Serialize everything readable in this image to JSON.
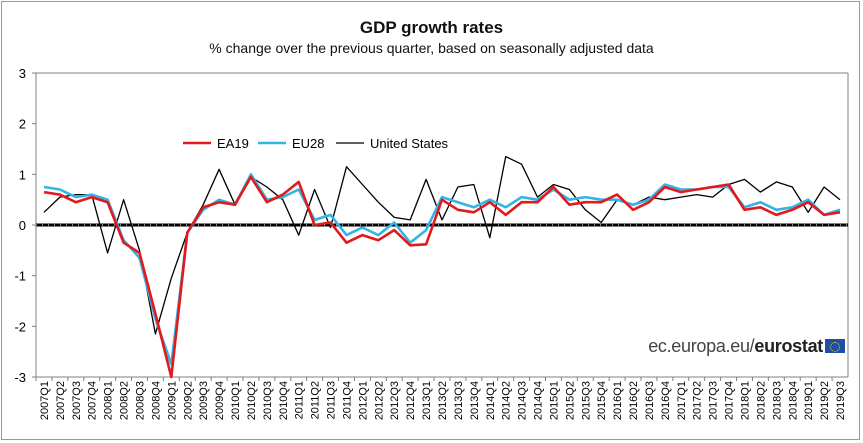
{
  "colors": {
    "ea19": "#e3191b",
    "eu28": "#33b4e5",
    "us": "#000000",
    "zero_line": "#000000",
    "axis": "#808080"
  },
  "logo": {
    "prefix": "ec.europa.eu/",
    "brand": "eurostat",
    "icon": "eu-flag-icon"
  },
  "chart_data": {
    "type": "line",
    "title": "GDP growth rates",
    "subtitle": "% change over the previous quarter, based on seasonally adjusted data",
    "xlabel": "",
    "ylabel": "",
    "ylim": [
      -3,
      3
    ],
    "yticks": [
      3,
      2,
      1,
      0,
      -1,
      -2,
      -3
    ],
    "grid": false,
    "legend_position": "upper-left",
    "categories": [
      "2007Q1",
      "2007Q2",
      "2007Q3",
      "2007Q4",
      "2008Q1",
      "2008Q2",
      "2008Q3",
      "2008Q4",
      "2009Q1",
      "2009Q2",
      "2009Q3",
      "2009Q4",
      "2010Q1",
      "2010Q2",
      "2010Q3",
      "2010Q4",
      "2011Q1",
      "2011Q2",
      "2011Q3",
      "2011Q4",
      "2012Q1",
      "2012Q2",
      "2012Q3",
      "2012Q4",
      "2013Q1",
      "2013Q2",
      "2013Q3",
      "2013Q4",
      "2014Q1",
      "2014Q2",
      "2014Q3",
      "2014Q4",
      "2015Q1",
      "2015Q2",
      "2015Q3",
      "2015Q4",
      "2016Q1",
      "2016Q2",
      "2016Q3",
      "2016Q4",
      "2017Q1",
      "2017Q2",
      "2017Q3",
      "2017Q4",
      "2018Q1",
      "2018Q2",
      "2018Q3",
      "2018Q4",
      "2019Q1",
      "2019Q2",
      "2019Q3"
    ],
    "series": [
      {
        "name": "EA19",
        "color": "#e3191b",
        "values": [
          0.65,
          0.6,
          0.45,
          0.55,
          0.45,
          -0.35,
          -0.55,
          -1.75,
          -3.0,
          -0.15,
          0.35,
          0.45,
          0.4,
          0.95,
          0.45,
          0.6,
          0.85,
          0.0,
          0.05,
          -0.35,
          -0.2,
          -0.3,
          -0.1,
          -0.4,
          -0.38,
          0.5,
          0.3,
          0.25,
          0.45,
          0.2,
          0.45,
          0.45,
          0.75,
          0.4,
          0.45,
          0.45,
          0.6,
          0.3,
          0.45,
          0.75,
          0.65,
          0.7,
          0.75,
          0.8,
          0.3,
          0.35,
          0.2,
          0.3,
          0.45,
          0.2,
          0.25
        ]
      },
      {
        "name": "EU28",
        "color": "#33b4e5",
        "values": [
          0.75,
          0.7,
          0.55,
          0.6,
          0.5,
          -0.3,
          -0.65,
          -1.85,
          -2.75,
          -0.15,
          0.3,
          0.5,
          0.4,
          1.0,
          0.5,
          0.55,
          0.7,
          0.1,
          0.2,
          -0.2,
          -0.05,
          -0.2,
          0.05,
          -0.35,
          -0.1,
          0.55,
          0.45,
          0.35,
          0.5,
          0.35,
          0.55,
          0.5,
          0.7,
          0.5,
          0.55,
          0.5,
          0.5,
          0.4,
          0.5,
          0.8,
          0.7,
          0.7,
          0.75,
          0.75,
          0.35,
          0.45,
          0.3,
          0.35,
          0.5,
          0.2,
          0.3
        ]
      },
      {
        "name": "United States",
        "color": "#000000",
        "values": [
          0.25,
          0.55,
          0.6,
          0.6,
          -0.55,
          0.5,
          -0.5,
          -2.15,
          -1.05,
          -0.15,
          0.4,
          1.1,
          0.4,
          0.95,
          0.75,
          0.5,
          -0.2,
          0.7,
          -0.05,
          1.15,
          0.8,
          0.45,
          0.15,
          0.1,
          0.9,
          0.1,
          0.75,
          0.8,
          -0.25,
          1.35,
          1.2,
          0.55,
          0.8,
          0.7,
          0.3,
          0.05,
          0.5,
          0.4,
          0.55,
          0.5,
          0.55,
          0.6,
          0.55,
          0.8,
          0.9,
          0.65,
          0.85,
          0.75,
          0.25,
          0.75,
          0.5
        ]
      }
    ]
  }
}
